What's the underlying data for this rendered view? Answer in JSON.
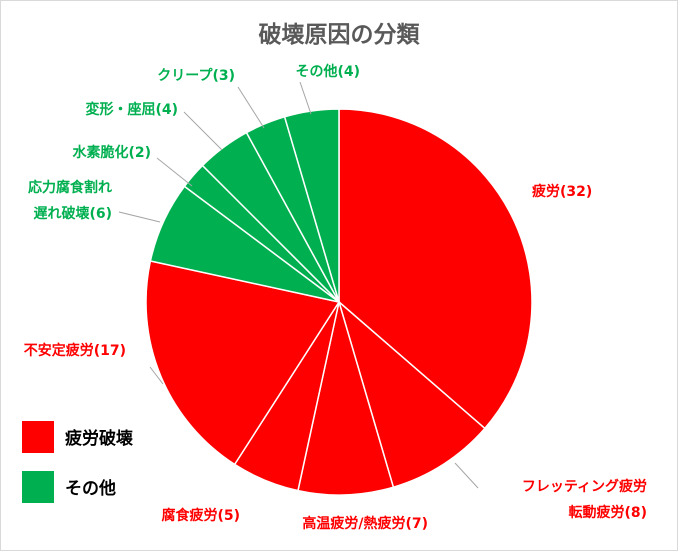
{
  "chart_data": {
    "type": "pie",
    "title": "破壊原因の分類",
    "start": "12 o'clock, clockwise",
    "slices": [
      {
        "label": "疲労(32)",
        "value": 32,
        "group": "fatigue"
      },
      {
        "label": "フレッティング疲労\n転動疲労(8)",
        "value": 8,
        "group": "fatigue"
      },
      {
        "label": "高温疲労/熱疲労(7)",
        "value": 7,
        "group": "fatigue"
      },
      {
        "label": "腐食疲労(5)",
        "value": 5,
        "group": "fatigue"
      },
      {
        "label": "不安定疲労(17)",
        "value": 17,
        "group": "fatigue"
      },
      {
        "label": "応力腐食割れ\n遅れ破壊(6)",
        "value": 6,
        "group": "other"
      },
      {
        "label": "水素脆化(2)",
        "value": 2,
        "group": "other"
      },
      {
        "label": "変形・座屈(4)",
        "value": 4,
        "group": "other"
      },
      {
        "label": "クリープ(3)",
        "value": 3,
        "group": "other"
      },
      {
        "label": "その他(4)",
        "value": 4,
        "group": "other"
      }
    ],
    "legend": [
      {
        "key": "fatigue",
        "label": "疲労破壊",
        "color": "#ff0000"
      },
      {
        "key": "other",
        "label": "その他",
        "color": "#00b050"
      }
    ],
    "legend_position": "bottom-left",
    "label_colors": {
      "fatigue": "#ff0000",
      "other": "#00b050"
    }
  }
}
